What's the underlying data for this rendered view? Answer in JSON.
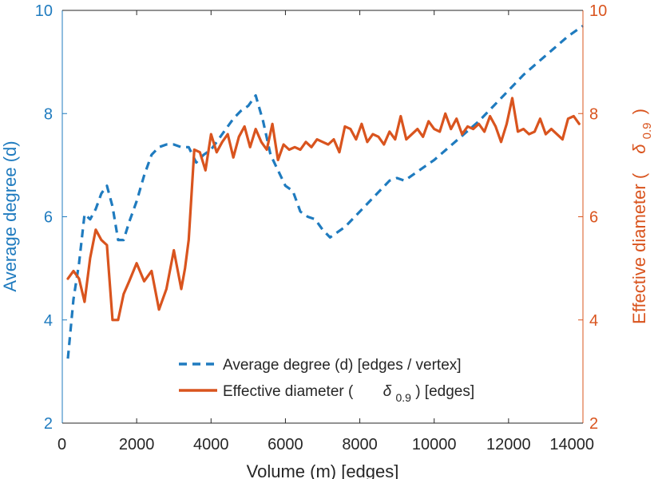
{
  "chart_data": {
    "type": "line",
    "xlabel": "Volume (m) [edges]",
    "ylabel_left": "Average degree (d)",
    "ylabel_right": "Effective diameter (δ₀.₉)",
    "ylabel_right_prefix": "Effective diameter (",
    "ylabel_right_symbol": "δ",
    "ylabel_right_subscript": "0.9",
    "ylabel_right_suffix": ")",
    "xlim": [
      0,
      14000
    ],
    "ylim_left": [
      2,
      10
    ],
    "ylim_right": [
      2,
      10
    ],
    "x_ticks": [
      "0",
      "2000",
      "4000",
      "6000",
      "8000",
      "10000",
      "12000",
      "14000"
    ],
    "y_ticks_left": [
      "2",
      "4",
      "6",
      "8",
      "10"
    ],
    "y_ticks_right": [
      "2",
      "4",
      "6",
      "8",
      "10"
    ],
    "colors": {
      "left": "#1f7bbf",
      "right": "#d9541e",
      "axis": "#262626"
    },
    "legend": {
      "position": "bottom-center",
      "entry1": "Average degree (d) [edges / vertex]",
      "entry2_prefix": "Effective diameter (",
      "entry2_symbol": "δ",
      "entry2_subscript": "0.9",
      "entry2_suffix": ") [edges]"
    },
    "series": [
      {
        "name": "Average degree (d) [edges / vertex]",
        "axis": "left",
        "style": "dashed",
        "x": [
          150,
          300,
          450,
          600,
          750,
          900,
          1050,
          1200,
          1350,
          1500,
          1650,
          1800,
          2000,
          2200,
          2400,
          2600,
          2800,
          3000,
          3200,
          3400,
          3600,
          3800,
          4000,
          4200,
          4400,
          4600,
          4800,
          5000,
          5200,
          5400,
          5600,
          5800,
          6000,
          6200,
          6400,
          6600,
          6800,
          7000,
          7200,
          7600,
          8000,
          8400,
          8800,
          9000,
          9200,
          9600,
          10000,
          10400,
          10800,
          11200,
          11600,
          12000,
          12400,
          12800,
          13200,
          13600,
          14000
        ],
        "y": [
          3.25,
          4.4,
          5.1,
          6.05,
          5.95,
          6.15,
          6.45,
          6.6,
          6.2,
          5.55,
          5.55,
          5.9,
          6.3,
          6.8,
          7.2,
          7.35,
          7.4,
          7.4,
          7.35,
          7.35,
          7.05,
          7.2,
          7.3,
          7.5,
          7.7,
          7.9,
          8.05,
          8.15,
          8.35,
          7.85,
          7.2,
          6.9,
          6.6,
          6.5,
          6.1,
          6.0,
          5.95,
          5.75,
          5.6,
          5.8,
          6.1,
          6.4,
          6.7,
          6.75,
          6.7,
          6.9,
          7.1,
          7.35,
          7.6,
          7.85,
          8.15,
          8.45,
          8.75,
          9.0,
          9.25,
          9.5,
          9.7
        ]
      },
      {
        "name": "Effective diameter (δ₀.₉) [edges]",
        "axis": "right",
        "style": "solid",
        "x": [
          150,
          300,
          450,
          600,
          750,
          900,
          1050,
          1200,
          1350,
          1500,
          1650,
          1800,
          2000,
          2200,
          2400,
          2600,
          2800,
          3000,
          3200,
          3300,
          3400,
          3550,
          3700,
          3850,
          4000,
          4150,
          4300,
          4450,
          4600,
          4750,
          4900,
          5050,
          5200,
          5350,
          5500,
          5650,
          5800,
          5950,
          6100,
          6250,
          6400,
          6550,
          6700,
          6850,
          7000,
          7150,
          7300,
          7450,
          7600,
          7750,
          7900,
          8050,
          8200,
          8350,
          8500,
          8650,
          8800,
          8950,
          9100,
          9250,
          9400,
          9550,
          9700,
          9850,
          10000,
          10150,
          10300,
          10450,
          10600,
          10750,
          10900,
          11050,
          11200,
          11350,
          11500,
          11650,
          11800,
          11950,
          12100,
          12250,
          12400,
          12550,
          12700,
          12850,
          13000,
          13150,
          13300,
          13450,
          13600,
          13750,
          13900
        ],
        "y": [
          4.8,
          4.95,
          4.8,
          4.35,
          5.2,
          5.75,
          5.55,
          5.45,
          4.0,
          4.0,
          4.5,
          4.75,
          5.1,
          4.75,
          4.95,
          4.2,
          4.6,
          5.35,
          4.6,
          5.0,
          5.55,
          7.3,
          7.25,
          6.9,
          7.6,
          7.25,
          7.45,
          7.6,
          7.15,
          7.55,
          7.75,
          7.35,
          7.7,
          7.45,
          7.3,
          7.8,
          7.1,
          7.4,
          7.3,
          7.35,
          7.3,
          7.45,
          7.35,
          7.5,
          7.45,
          7.4,
          7.5,
          7.25,
          7.75,
          7.7,
          7.5,
          7.8,
          7.45,
          7.6,
          7.55,
          7.4,
          7.65,
          7.5,
          7.95,
          7.5,
          7.6,
          7.7,
          7.55,
          7.85,
          7.7,
          7.65,
          8.0,
          7.7,
          7.9,
          7.6,
          7.75,
          7.7,
          7.8,
          7.65,
          7.95,
          7.75,
          7.45,
          7.8,
          8.3,
          7.65,
          7.7,
          7.6,
          7.65,
          7.9,
          7.6,
          7.7,
          7.6,
          7.5,
          7.9,
          7.95,
          7.8
        ]
      }
    ]
  }
}
